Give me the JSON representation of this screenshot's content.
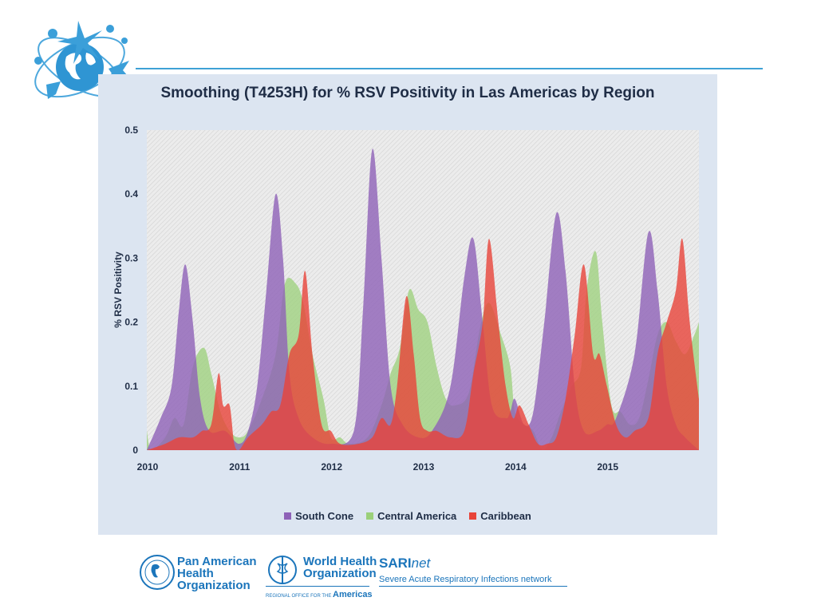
{
  "colors": {
    "south_cone": "#8e62b8",
    "central_america": "#9bd07a",
    "caribbean": "#e8443a",
    "panel": "#dce5f1",
    "accent": "#1b75bb"
  },
  "footer": {
    "paho": "Pan American Health Organization",
    "paho_lines": [
      "Pan American",
      "Health",
      "Organization"
    ],
    "who_lines": [
      "World Health",
      "Organization"
    ],
    "who_regional": "REGIONAL OFFICE FOR THE",
    "who_americas": "Americas",
    "sari_name": "SARI",
    "sari_suffix": "net",
    "sari_desc": "Severe Acute Respiratory Infections network"
  },
  "chart_data": {
    "type": "area",
    "title": "Smoothing (T4253H) for % RSV Positivity in Las Americas by Region",
    "xlabel": "",
    "ylabel": "% RSV Positivity",
    "xlim": [
      2010,
      2016
    ],
    "ylim": [
      0,
      0.5
    ],
    "x_ticks": [
      "2010",
      "2011",
      "2012",
      "2013",
      "2014",
      "2015"
    ],
    "y_ticks": [
      "0",
      "0.1",
      "0.2",
      "0.3",
      "0.4",
      "0.5"
    ],
    "legend_position": "bottom",
    "series": [
      {
        "name": "South Cone",
        "points": [
          [
            2010.0,
            0.0
          ],
          [
            2010.15,
            0.05
          ],
          [
            2010.27,
            0.1
          ],
          [
            2010.35,
            0.22
          ],
          [
            2010.42,
            0.29
          ],
          [
            2010.5,
            0.2
          ],
          [
            2010.58,
            0.08
          ],
          [
            2010.68,
            0.03
          ],
          [
            2010.85,
            0.03
          ],
          [
            2011.0,
            0.01
          ],
          [
            2011.1,
            0.03
          ],
          [
            2011.2,
            0.1
          ],
          [
            2011.3,
            0.25
          ],
          [
            2011.4,
            0.4
          ],
          [
            2011.48,
            0.3
          ],
          [
            2011.55,
            0.12
          ],
          [
            2011.65,
            0.05
          ],
          [
            2011.8,
            0.02
          ],
          [
            2012.0,
            0.01
          ],
          [
            2012.25,
            0.03
          ],
          [
            2012.35,
            0.22
          ],
          [
            2012.45,
            0.47
          ],
          [
            2012.55,
            0.3
          ],
          [
            2012.65,
            0.1
          ],
          [
            2012.78,
            0.04
          ],
          [
            2012.95,
            0.02
          ],
          [
            2013.1,
            0.03
          ],
          [
            2013.3,
            0.1
          ],
          [
            2013.45,
            0.27
          ],
          [
            2013.55,
            0.33
          ],
          [
            2013.65,
            0.2
          ],
          [
            2013.75,
            0.07
          ],
          [
            2013.9,
            0.05
          ],
          [
            2013.95,
            0.06
          ],
          [
            2014.0,
            0.08
          ],
          [
            2014.1,
            0.04
          ],
          [
            2014.2,
            0.06
          ],
          [
            2014.32,
            0.2
          ],
          [
            2014.45,
            0.37
          ],
          [
            2014.55,
            0.28
          ],
          [
            2014.65,
            0.1
          ],
          [
            2014.75,
            0.03
          ],
          [
            2014.9,
            0.03
          ],
          [
            2015.0,
            0.04
          ],
          [
            2015.1,
            0.05
          ],
          [
            2015.3,
            0.15
          ],
          [
            2015.45,
            0.34
          ],
          [
            2015.55,
            0.25
          ],
          [
            2015.65,
            0.1
          ],
          [
            2015.75,
            0.04
          ],
          [
            2015.85,
            0.02
          ],
          [
            2016.0,
            0.0
          ]
        ]
      },
      {
        "name": "Central America",
        "points": [
          [
            2010.0,
            0.03
          ],
          [
            2010.05,
            0.0
          ],
          [
            2010.2,
            0.02
          ],
          [
            2010.3,
            0.05
          ],
          [
            2010.4,
            0.04
          ],
          [
            2010.5,
            0.13
          ],
          [
            2010.62,
            0.16
          ],
          [
            2010.7,
            0.12
          ],
          [
            2010.8,
            0.06
          ],
          [
            2010.9,
            0.03
          ],
          [
            2011.0,
            0.02
          ],
          [
            2011.1,
            0.03
          ],
          [
            2011.25,
            0.08
          ],
          [
            2011.4,
            0.15
          ],
          [
            2011.5,
            0.26
          ],
          [
            2011.62,
            0.26
          ],
          [
            2011.7,
            0.23
          ],
          [
            2011.8,
            0.15
          ],
          [
            2011.92,
            0.08
          ],
          [
            2012.0,
            0.02
          ],
          [
            2012.1,
            0.02
          ],
          [
            2012.2,
            0.01
          ],
          [
            2012.4,
            0.02
          ],
          [
            2012.55,
            0.07
          ],
          [
            2012.65,
            0.12
          ],
          [
            2012.75,
            0.16
          ],
          [
            2012.85,
            0.25
          ],
          [
            2012.95,
            0.22
          ],
          [
            2013.05,
            0.2
          ],
          [
            2013.15,
            0.13
          ],
          [
            2013.25,
            0.08
          ],
          [
            2013.35,
            0.07
          ],
          [
            2013.5,
            0.09
          ],
          [
            2013.62,
            0.19
          ],
          [
            2013.72,
            0.23
          ],
          [
            2013.85,
            0.18
          ],
          [
            2013.95,
            0.13
          ],
          [
            2014.0,
            0.06
          ],
          [
            2014.1,
            0.04
          ],
          [
            2014.2,
            0.03
          ],
          [
            2014.3,
            0.0
          ],
          [
            2014.4,
            0.02
          ],
          [
            2014.5,
            0.06
          ],
          [
            2014.62,
            0.1
          ],
          [
            2014.72,
            0.13
          ],
          [
            2014.78,
            0.25
          ],
          [
            2014.88,
            0.31
          ],
          [
            2014.95,
            0.2
          ],
          [
            2015.05,
            0.07
          ],
          [
            2015.15,
            0.06
          ],
          [
            2015.25,
            0.04
          ],
          [
            2015.35,
            0.05
          ],
          [
            2015.45,
            0.11
          ],
          [
            2015.55,
            0.18
          ],
          [
            2015.65,
            0.2
          ],
          [
            2015.75,
            0.17
          ],
          [
            2015.85,
            0.15
          ],
          [
            2015.95,
            0.18
          ],
          [
            2016.0,
            0.2
          ]
        ]
      },
      {
        "name": "Caribbean",
        "points": [
          [
            2010.0,
            0.0
          ],
          [
            2010.2,
            0.01
          ],
          [
            2010.35,
            0.02
          ],
          [
            2010.5,
            0.02
          ],
          [
            2010.6,
            0.03
          ],
          [
            2010.7,
            0.04
          ],
          [
            2010.78,
            0.12
          ],
          [
            2010.83,
            0.07
          ],
          [
            2010.9,
            0.07
          ],
          [
            2010.95,
            0.01
          ],
          [
            2011.0,
            0.0
          ],
          [
            2011.1,
            0.02
          ],
          [
            2011.25,
            0.04
          ],
          [
            2011.35,
            0.06
          ],
          [
            2011.45,
            0.07
          ],
          [
            2011.55,
            0.15
          ],
          [
            2011.65,
            0.18
          ],
          [
            2011.72,
            0.28
          ],
          [
            2011.8,
            0.15
          ],
          [
            2011.9,
            0.04
          ],
          [
            2012.0,
            0.03
          ],
          [
            2012.1,
            0.01
          ],
          [
            2012.3,
            0.01
          ],
          [
            2012.45,
            0.02
          ],
          [
            2012.55,
            0.05
          ],
          [
            2012.65,
            0.04
          ],
          [
            2012.72,
            0.1
          ],
          [
            2012.82,
            0.24
          ],
          [
            2012.9,
            0.15
          ],
          [
            2012.97,
            0.05
          ],
          [
            2013.05,
            0.03
          ],
          [
            2013.15,
            0.03
          ],
          [
            2013.3,
            0.02
          ],
          [
            2013.45,
            0.03
          ],
          [
            2013.55,
            0.12
          ],
          [
            2013.65,
            0.2
          ],
          [
            2013.72,
            0.33
          ],
          [
            2013.82,
            0.2
          ],
          [
            2013.9,
            0.1
          ],
          [
            2013.98,
            0.05
          ],
          [
            2014.05,
            0.07
          ],
          [
            2014.15,
            0.04
          ],
          [
            2014.25,
            0.01
          ],
          [
            2014.35,
            0.01
          ],
          [
            2014.45,
            0.02
          ],
          [
            2014.55,
            0.08
          ],
          [
            2014.65,
            0.18
          ],
          [
            2014.75,
            0.29
          ],
          [
            2014.85,
            0.15
          ],
          [
            2014.92,
            0.15
          ],
          [
            2015.0,
            0.1
          ],
          [
            2015.1,
            0.04
          ],
          [
            2015.2,
            0.02
          ],
          [
            2015.3,
            0.03
          ],
          [
            2015.45,
            0.05
          ],
          [
            2015.55,
            0.15
          ],
          [
            2015.65,
            0.2
          ],
          [
            2015.75,
            0.25
          ],
          [
            2015.82,
            0.33
          ],
          [
            2015.9,
            0.2
          ],
          [
            2016.0,
            0.08
          ]
        ]
      }
    ]
  }
}
